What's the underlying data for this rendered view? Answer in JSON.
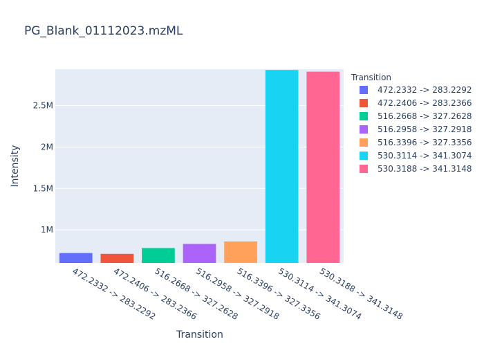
{
  "chart_data": {
    "type": "bar",
    "title": "PG_Blank_01112023.mzML",
    "xlabel": "Transition",
    "ylabel": "Intensity",
    "legend_title": "Transition",
    "legend_position": "right",
    "categories": [
      "472.2332 -> 283.2292",
      "472.2406 -> 283.2366",
      "516.2668 -> 327.2628",
      "516.2958 -> 327.2918",
      "516.3396 -> 327.3356",
      "530.3114 -> 341.3074",
      "530.3188 -> 341.3148"
    ],
    "values": [
      720000,
      710000,
      780000,
      830000,
      860000,
      2930000,
      2910000
    ],
    "colors": [
      "#636efa",
      "#ef553b",
      "#00cc96",
      "#ab63fa",
      "#ffa15a",
      "#19d3f3",
      "#ff6692"
    ],
    "ylim": [
      600000,
      2940000
    ],
    "yticks": [
      1000000,
      1500000,
      2000000,
      2500000
    ],
    "ytick_labels": [
      "1M",
      "1.5M",
      "2M",
      "2.5M"
    ],
    "grid": true,
    "plot_bg": "#e5ecf6"
  }
}
